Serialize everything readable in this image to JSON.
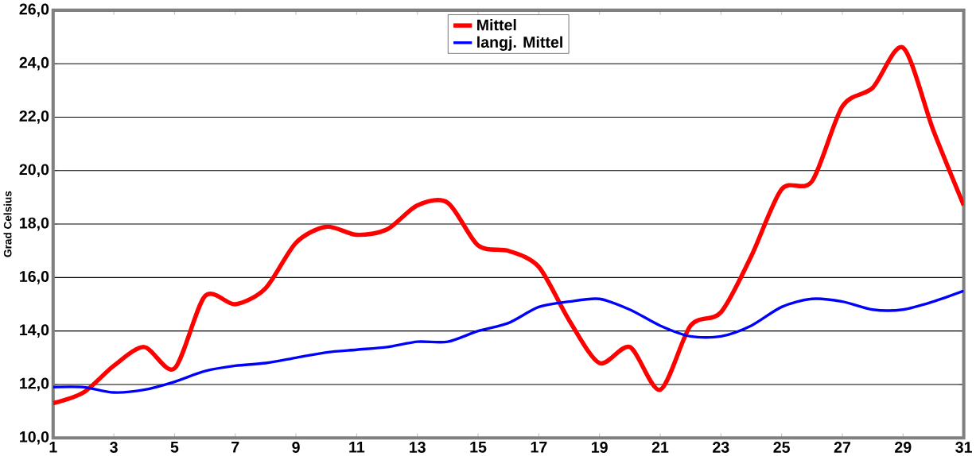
{
  "chart_data": {
    "type": "line",
    "ylabel": "Grad Celsius",
    "x": [
      1,
      2,
      3,
      4,
      5,
      6,
      7,
      8,
      9,
      10,
      11,
      12,
      13,
      14,
      15,
      16,
      17,
      18,
      19,
      20,
      21,
      22,
      23,
      24,
      25,
      26,
      27,
      28,
      29,
      30,
      31
    ],
    "series": [
      {
        "name": "Mittel",
        "color": "#ff0000",
        "values": [
          11.3,
          11.7,
          12.7,
          13.4,
          12.6,
          15.3,
          15.0,
          15.6,
          17.3,
          17.9,
          17.6,
          17.8,
          18.7,
          18.8,
          17.2,
          17.0,
          16.4,
          14.4,
          12.8,
          13.4,
          11.8,
          14.2,
          14.7,
          16.8,
          19.3,
          19.6,
          22.4,
          23.1,
          24.6,
          21.5,
          18.7
        ]
      },
      {
        "name": "langj. Mittel",
        "color": "#0000ff",
        "values": [
          11.9,
          11.9,
          11.7,
          11.8,
          12.1,
          12.5,
          12.7,
          12.8,
          13.0,
          13.2,
          13.3,
          13.4,
          13.6,
          13.6,
          14.0,
          14.3,
          14.9,
          15.1,
          15.2,
          14.8,
          14.2,
          13.8,
          13.8,
          14.2,
          14.9,
          15.2,
          15.1,
          14.8,
          14.8,
          15.1,
          15.5
        ]
      }
    ],
    "xlim": [
      1,
      31
    ],
    "xticks": [
      1,
      3,
      5,
      7,
      9,
      11,
      13,
      15,
      17,
      19,
      21,
      23,
      25,
      27,
      29,
      31
    ],
    "ylim": [
      10,
      26
    ],
    "yticks": [
      {
        "value": 10,
        "label": "10,0"
      },
      {
        "value": 12,
        "label": "12,0"
      },
      {
        "value": 14,
        "label": "14,0"
      },
      {
        "value": 16,
        "label": "16,0"
      },
      {
        "value": 18,
        "label": "18,0"
      },
      {
        "value": 20,
        "label": "20,0"
      },
      {
        "value": 22,
        "label": "22,0"
      },
      {
        "value": 24,
        "label": "24,0"
      },
      {
        "value": 26,
        "label": "26,0"
      }
    ],
    "grid": "y",
    "legend": "top",
    "marker": "none",
    "line_style": "solid"
  }
}
